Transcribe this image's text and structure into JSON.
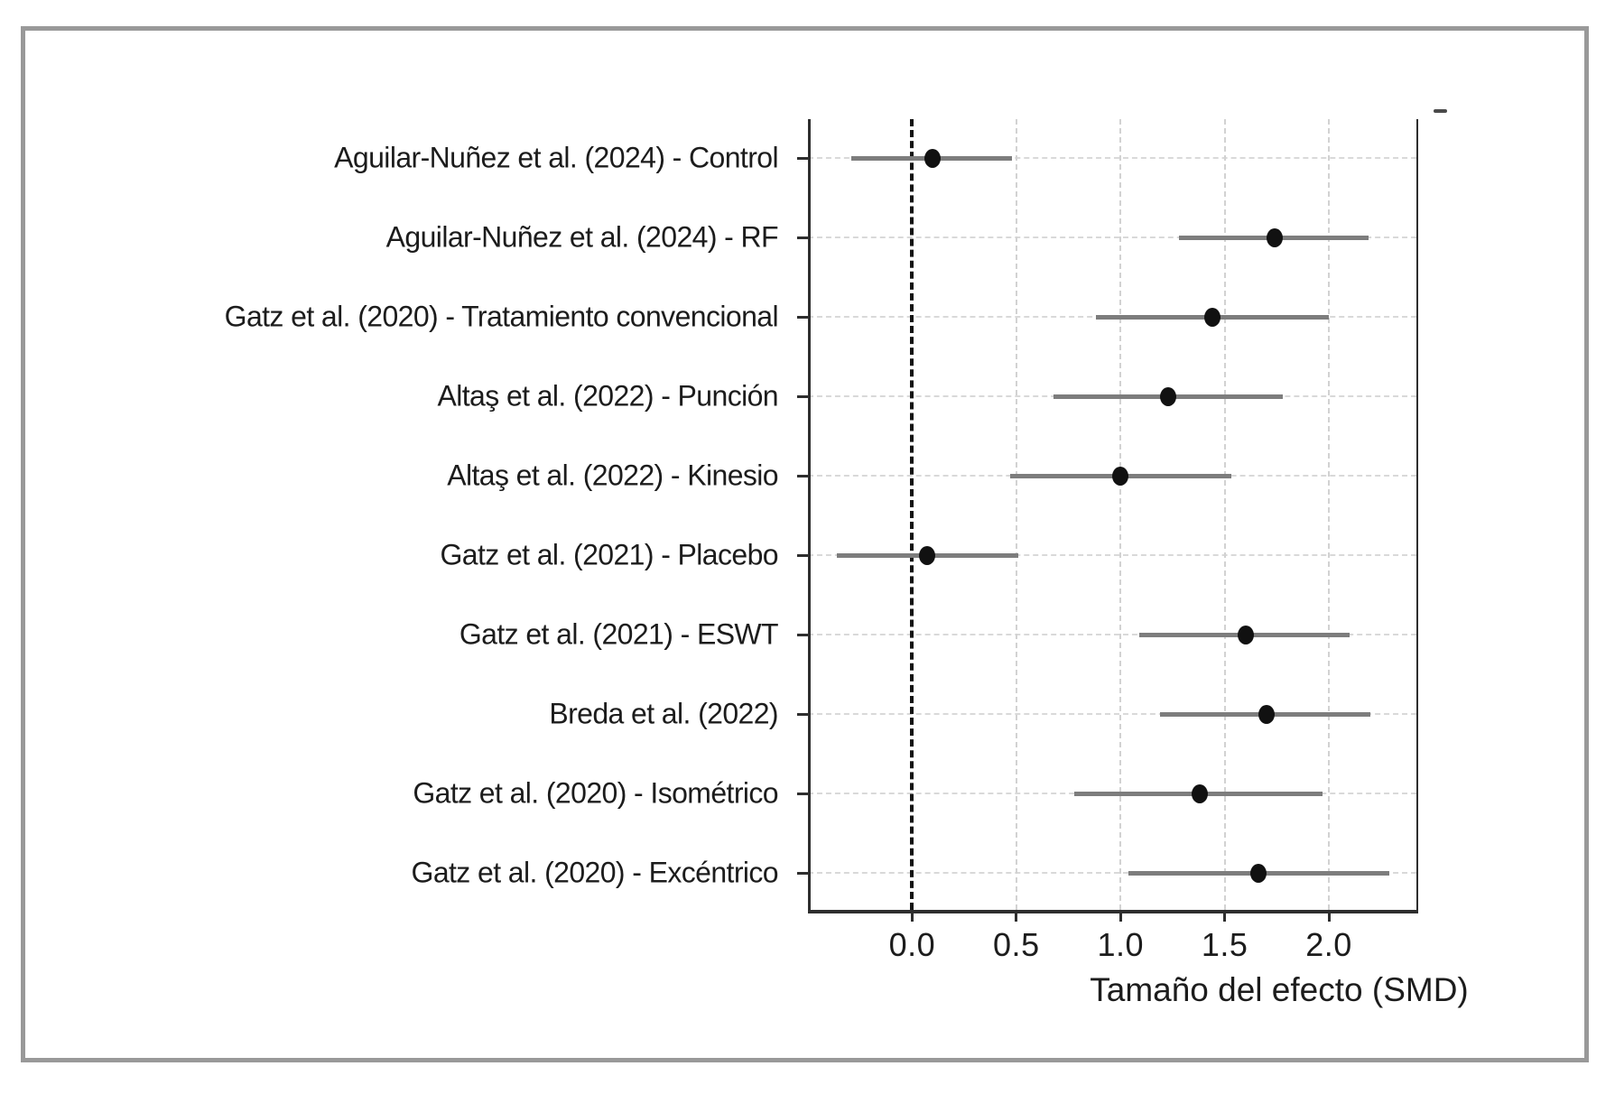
{
  "chart_data": {
    "type": "scatter",
    "variant": "forest-plot",
    "title": "",
    "xlabel": "Tamaño del efecto (SMD)",
    "ylabel": "",
    "xlim": [
      -0.5,
      2.42
    ],
    "xticks": [
      0.0,
      0.5,
      1.0,
      1.5,
      2.0
    ],
    "xtick_labels": [
      "0.0",
      "0.5",
      "1.0",
      "1.5",
      "2.0"
    ],
    "reference_line_x": 0.0,
    "grid": true,
    "legend": "none",
    "studies": [
      {
        "label": "Aguilar-Nuñez et al. (2024) - Control",
        "smd": 0.1,
        "ci_low": -0.29,
        "ci_high": 0.48
      },
      {
        "label": "Aguilar-Nuñez et al. (2024) - RF",
        "smd": 1.74,
        "ci_low": 1.28,
        "ci_high": 2.19
      },
      {
        "label": "Gatz et al. (2020) - Tratamiento convencional",
        "smd": 1.44,
        "ci_low": 0.88,
        "ci_high": 2.0
      },
      {
        "label": "Altaş et al. (2022) - Punción",
        "smd": 1.23,
        "ci_low": 0.68,
        "ci_high": 1.78
      },
      {
        "label": "Altaş et al. (2022) - Kinesio",
        "smd": 1.0,
        "ci_low": 0.47,
        "ci_high": 1.53
      },
      {
        "label": "Gatz et al. (2021) - Placebo",
        "smd": 0.07,
        "ci_low": -0.36,
        "ci_high": 0.51
      },
      {
        "label": "Gatz et al. (2021) - ESWT",
        "smd": 1.6,
        "ci_low": 1.09,
        "ci_high": 2.1
      },
      {
        "label": "Breda et al. (2022)",
        "smd": 1.7,
        "ci_low": 1.19,
        "ci_high": 2.2
      },
      {
        "label": "Gatz et al. (2020) - Isométrico",
        "smd": 1.38,
        "ci_low": 0.78,
        "ci_high": 1.97
      },
      {
        "label": "Gatz et al. (2020) - Excéntrico",
        "smd": 1.66,
        "ci_low": 1.04,
        "ci_high": 2.29
      }
    ],
    "colors": {
      "point": "#111111",
      "ci_line": "#7d7d7d",
      "grid": "#d2d2d2",
      "zero_line": "#141414",
      "spine": "#2e2e2e",
      "text": "#1c1c1c",
      "frame_border": "#999999"
    }
  }
}
